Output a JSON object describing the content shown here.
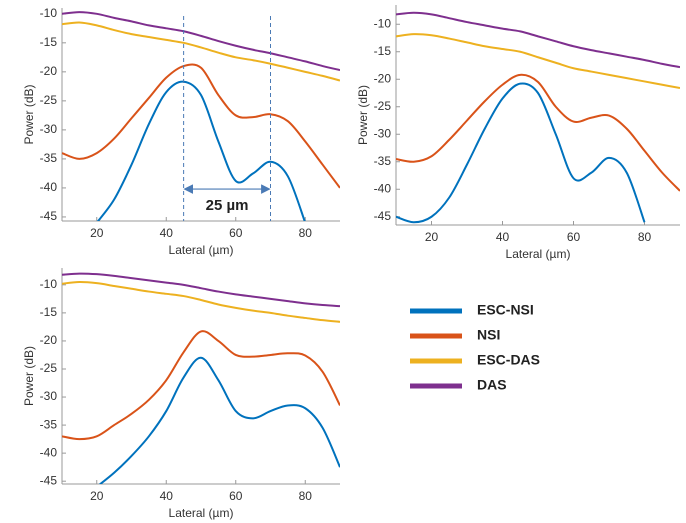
{
  "chart_data": [
    {
      "type": "line",
      "xlabel": "Lateral (µm)",
      "ylabel": "Power (dB)",
      "x": [
        10,
        15,
        20,
        25,
        30,
        35,
        40,
        45,
        50,
        55,
        60,
        65,
        70,
        75,
        80,
        85,
        90
      ],
      "xlim": [
        10,
        90
      ],
      "xticks": [
        20,
        40,
        60,
        80
      ],
      "ylim": [
        -45.7,
        -9
      ],
      "yticks": [
        -45,
        -40,
        -35,
        -30,
        -25,
        -20,
        -15,
        -10
      ],
      "series": [
        {
          "name": "ESC-NSI",
          "color": "#0072bd",
          "values": [
            null,
            null,
            -46,
            -42,
            -36,
            -29,
            -23.5,
            -21.7,
            -24,
            -32,
            -38.8,
            -37.5,
            -35.5,
            -38,
            -46,
            null,
            null
          ]
        },
        {
          "name": "NSI",
          "color": "#d95319",
          "values": [
            -34,
            -35,
            -34,
            -31.5,
            -28,
            -24.5,
            -21,
            -19,
            -19.3,
            -24,
            -27.5,
            -27.8,
            -27.3,
            -28.5,
            -32,
            -36,
            -40
          ]
        },
        {
          "name": "ESC-DAS",
          "color": "#edb120",
          "values": [
            -11.8,
            -11.5,
            -12,
            -12.8,
            -13.5,
            -14,
            -14.5,
            -15,
            -15.8,
            -16.7,
            -17.5,
            -18,
            -18.6,
            -19.3,
            -20,
            -20.7,
            -21.5
          ]
        },
        {
          "name": "DAS",
          "color": "#7e2f8e",
          "values": [
            -10,
            -9.7,
            -10,
            -10.7,
            -11.3,
            -12,
            -12.5,
            -13,
            -13.8,
            -14.7,
            -15.5,
            -16.2,
            -16.8,
            -17.5,
            -18.2,
            -19,
            -19.7
          ]
        }
      ],
      "annotation": {
        "text": "25 µm",
        "x": [
          45,
          70
        ]
      }
    },
    {
      "type": "line",
      "xlabel": "Lateral (µm)",
      "ylabel": "Power (dB)",
      "x": [
        10,
        15,
        20,
        25,
        30,
        35,
        40,
        45,
        50,
        55,
        60,
        65,
        70,
        75,
        80,
        85,
        90
      ],
      "xlim": [
        10,
        90
      ],
      "xticks": [
        20,
        40,
        60,
        80
      ],
      "ylim": [
        -46.5,
        -6.5
      ],
      "yticks": [
        -45,
        -40,
        -35,
        -30,
        -25,
        -20,
        -15,
        -10
      ],
      "series": [
        {
          "name": "ESC-NSI",
          "color": "#0072bd",
          "values": [
            -45,
            -46,
            -45,
            -41.5,
            -35.5,
            -29,
            -23.5,
            -20.8,
            -22.5,
            -30,
            -38,
            -37,
            -34.3,
            -37,
            -46,
            null,
            null
          ]
        },
        {
          "name": "NSI",
          "color": "#d95319",
          "values": [
            -34.5,
            -35,
            -34,
            -31,
            -27.5,
            -24,
            -21,
            -19.2,
            -20.5,
            -25,
            -27.7,
            -27,
            -26.6,
            -29,
            -33,
            -37,
            -40.3
          ]
        },
        {
          "name": "ESC-DAS",
          "color": "#edb120",
          "values": [
            -12.2,
            -11.8,
            -12,
            -12.6,
            -13.3,
            -14,
            -14.5,
            -15,
            -16,
            -17,
            -18,
            -18.6,
            -19.2,
            -19.8,
            -20.4,
            -21,
            -21.6
          ]
        },
        {
          "name": "DAS",
          "color": "#7e2f8e",
          "values": [
            -8.2,
            -7.9,
            -8.2,
            -8.9,
            -9.6,
            -10.2,
            -10.8,
            -11.3,
            -12.2,
            -13.1,
            -14,
            -14.7,
            -15.3,
            -15.9,
            -16.5,
            -17.2,
            -17.8
          ]
        }
      ]
    },
    {
      "type": "line",
      "xlabel": "Lateral (µm)",
      "ylabel": "Power (dB)",
      "x": [
        10,
        15,
        20,
        25,
        30,
        35,
        40,
        45,
        50,
        55,
        60,
        65,
        70,
        75,
        80,
        85,
        90
      ],
      "xlim": [
        10,
        90
      ],
      "xticks": [
        20,
        40,
        60,
        80
      ],
      "ylim": [
        -45.5,
        -7
      ],
      "yticks": [
        -45,
        -40,
        -35,
        -30,
        -25,
        -20,
        -15,
        -10
      ],
      "series": [
        {
          "name": "ESC-NSI",
          "color": "#0072bd",
          "values": [
            null,
            null,
            -46,
            -43.5,
            -40.5,
            -37,
            -32.5,
            -26.5,
            -23,
            -27,
            -32.5,
            -33.8,
            -32.5,
            -31.5,
            -32,
            -35.5,
            -42.5
          ]
        },
        {
          "name": "NSI",
          "color": "#d95319",
          "values": [
            -37,
            -37.5,
            -37,
            -35,
            -33,
            -30.5,
            -27,
            -22,
            -18.3,
            -20,
            -22.5,
            -22.8,
            -22.5,
            -22.2,
            -22.6,
            -25.5,
            -31.5
          ]
        },
        {
          "name": "ESC-DAS",
          "color": "#edb120",
          "values": [
            -9.8,
            -9.5,
            -9.7,
            -10.2,
            -10.7,
            -11.2,
            -11.6,
            -12,
            -12.7,
            -13.5,
            -14.1,
            -14.6,
            -15,
            -15.5,
            -15.9,
            -16.3,
            -16.6
          ]
        },
        {
          "name": "DAS",
          "color": "#7e2f8e",
          "values": [
            -8.2,
            -8,
            -8.1,
            -8.4,
            -8.8,
            -9.2,
            -9.6,
            -10,
            -10.6,
            -11.2,
            -11.7,
            -12.1,
            -12.5,
            -12.9,
            -13.3,
            -13.6,
            -13.8
          ]
        }
      ]
    }
  ]
}
